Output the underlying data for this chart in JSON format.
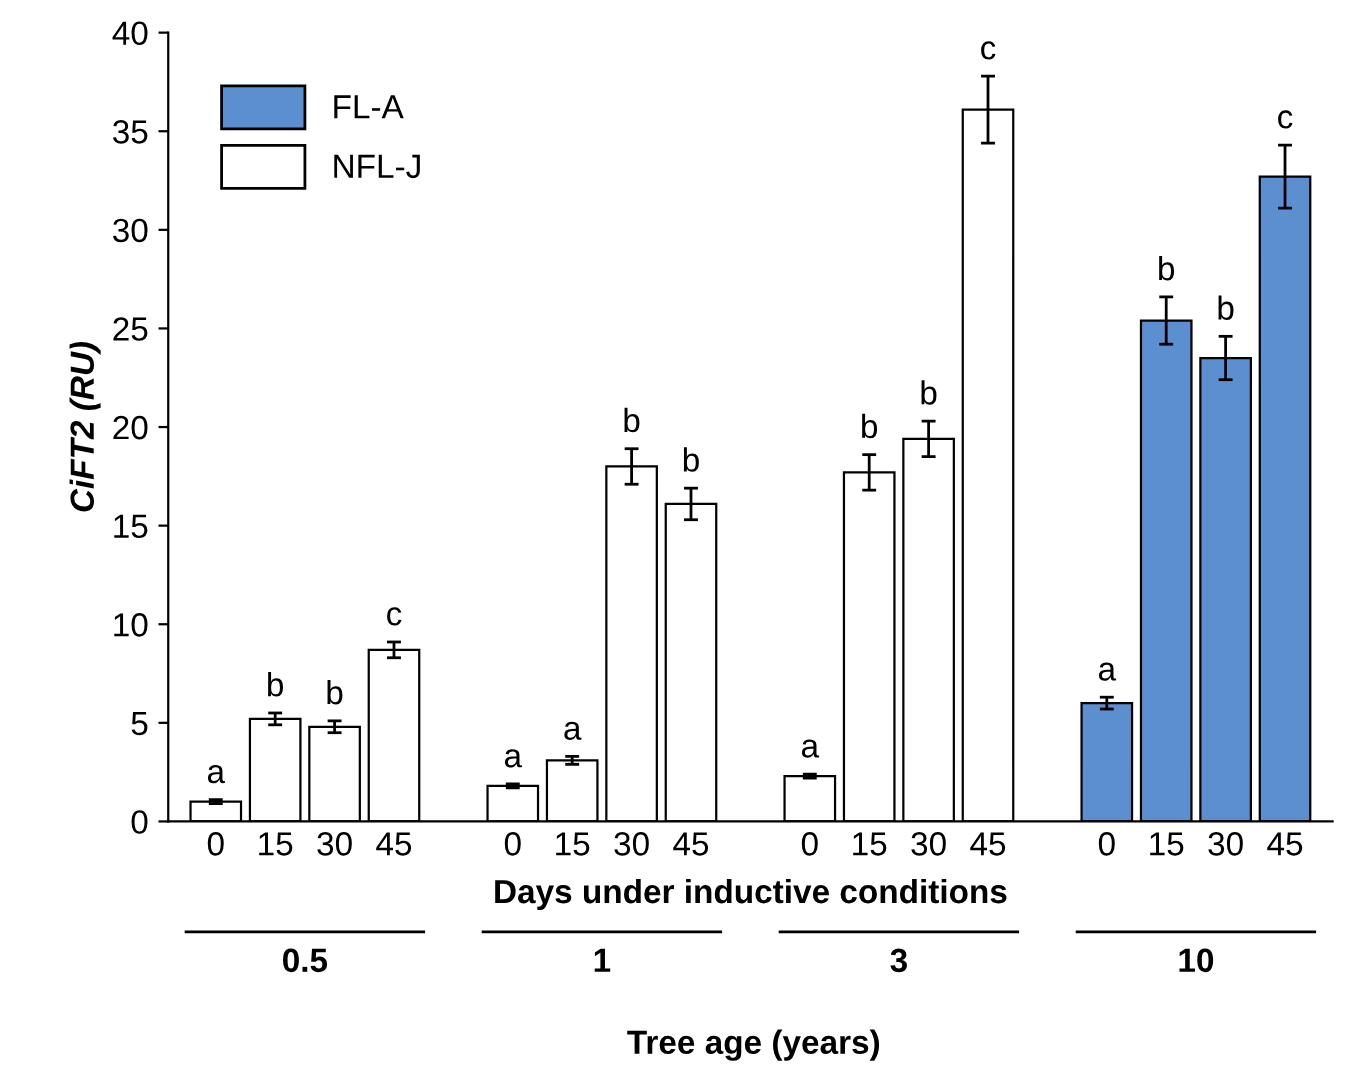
{
  "chart_data": {
    "type": "bar",
    "categories": [
      "0",
      "15",
      "30",
      "45",
      null,
      "0",
      "15",
      "30",
      "45",
      null,
      "0",
      "15",
      "30",
      "45",
      null,
      "0",
      "15",
      "30",
      "45"
    ],
    "series": [
      {
        "name": "FL-A",
        "color": "#5b8fd0",
        "values": [
          null,
          null,
          null,
          null,
          null,
          null,
          null,
          null,
          null,
          null,
          null,
          null,
          null,
          null,
          null,
          6.0,
          25.4,
          23.5,
          32.7
        ],
        "errors": [
          null,
          null,
          null,
          null,
          null,
          null,
          null,
          null,
          null,
          null,
          null,
          null,
          null,
          null,
          null,
          0.3,
          1.2,
          1.1,
          1.6
        ],
        "value_labels": [
          null,
          null,
          null,
          null,
          null,
          null,
          null,
          null,
          null,
          null,
          null,
          null,
          null,
          null,
          null,
          "a",
          "b",
          "b",
          "c"
        ]
      },
      {
        "name": "NFL-J",
        "color": "#ffffff",
        "values": [
          1.0,
          5.2,
          4.8,
          8.7,
          null,
          1.8,
          3.1,
          18.0,
          16.1,
          null,
          2.3,
          17.7,
          19.4,
          36.1,
          null,
          null,
          null,
          null,
          null
        ],
        "errors": [
          0.1,
          0.3,
          0.3,
          0.4,
          null,
          0.1,
          0.2,
          0.9,
          0.8,
          null,
          0.1,
          0.9,
          0.9,
          1.7,
          null,
          null,
          null,
          null,
          null
        ],
        "value_labels": [
          "a",
          "b",
          "b",
          "c",
          null,
          "a",
          "a",
          "b",
          "b",
          null,
          "a",
          "b",
          "b",
          "c",
          null,
          null,
          null,
          null,
          null
        ]
      }
    ],
    "xlabel": "Days under inductive conditions",
    "ylabel": "CiFT2 (RU)",
    "ylim": [
      0,
      40
    ],
    "yticks": [
      0,
      5,
      10,
      15,
      20,
      25,
      30,
      35,
      40
    ],
    "legend": "top left",
    "annotations": [
      "0.5",
      "1",
      "3",
      "10",
      "Tree age (years)"
    ]
  }
}
